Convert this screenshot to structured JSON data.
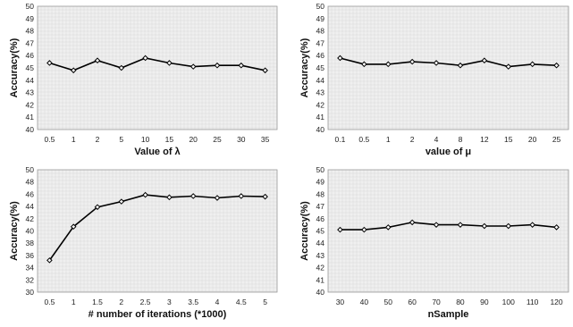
{
  "chart_data": [
    {
      "type": "line",
      "xlabel": "Value of λ",
      "ylabel": "Accuracy(%)",
      "categories": [
        "0.5",
        "1",
        "2",
        "5",
        "10",
        "15",
        "20",
        "25",
        "30",
        "35"
      ],
      "yticks": [
        "40",
        "41",
        "42",
        "43",
        "44",
        "45",
        "46",
        "47",
        "48",
        "49",
        "50"
      ],
      "ylim": [
        40,
        50
      ],
      "grid": true,
      "legend": "none",
      "series": [
        {
          "values": [
            45.4,
            44.8,
            45.6,
            45.0,
            45.8,
            45.4,
            45.1,
            45.2,
            45.2,
            44.8
          ]
        }
      ]
    },
    {
      "type": "line",
      "xlabel": "value of μ",
      "ylabel": "Accuracy(%)",
      "categories": [
        "0.1",
        "0.5",
        "1",
        "2",
        "4",
        "8",
        "12",
        "15",
        "20",
        "25"
      ],
      "yticks": [
        "40",
        "41",
        "42",
        "43",
        "44",
        "45",
        "46",
        "47",
        "48",
        "49",
        "50"
      ],
      "ylim": [
        40,
        50
      ],
      "grid": true,
      "legend": "none",
      "series": [
        {
          "values": [
            45.8,
            45.3,
            45.3,
            45.5,
            45.4,
            45.2,
            45.6,
            45.1,
            45.3,
            45.2
          ]
        }
      ]
    },
    {
      "type": "line",
      "xlabel": "# number of iterations (*1000)",
      "ylabel": "Accuracy(%)",
      "categories": [
        "0.5",
        "1",
        "1.5",
        "2",
        "2.5",
        "3",
        "3.5",
        "4",
        "4.5",
        "5"
      ],
      "yticks": [
        "30",
        "32",
        "34",
        "36",
        "38",
        "40",
        "42",
        "44",
        "46",
        "48",
        "50"
      ],
      "ylim": [
        30,
        50
      ],
      "grid": true,
      "legend": "none",
      "series": [
        {
          "values": [
            35.2,
            40.7,
            43.9,
            44.8,
            45.9,
            45.5,
            45.7,
            45.4,
            45.7,
            45.6
          ]
        }
      ]
    },
    {
      "type": "line",
      "xlabel": "nSample",
      "ylabel": "Accuracy(%)",
      "categories": [
        "30",
        "40",
        "50",
        "60",
        "70",
        "80",
        "90",
        "100",
        "110",
        "120"
      ],
      "yticks": [
        "40",
        "41",
        "42",
        "43",
        "44",
        "45",
        "46",
        "47",
        "48",
        "49",
        "50"
      ],
      "ylim": [
        40,
        50
      ],
      "grid": true,
      "legend": "none",
      "series": [
        {
          "values": [
            45.1,
            45.1,
            45.3,
            45.7,
            45.5,
            45.5,
            45.4,
            45.4,
            45.5,
            45.3
          ]
        }
      ]
    }
  ],
  "colors": {
    "line": "#000000",
    "grid": "#d9d9d9",
    "plot_background": "#efefef"
  }
}
